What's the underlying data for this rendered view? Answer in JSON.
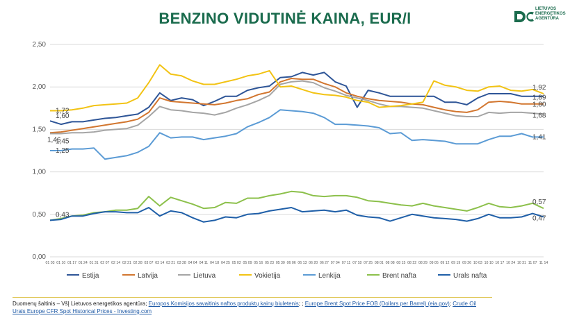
{
  "title": "BENZINO VIDUTINĖ KAINA, EUR/l",
  "logo": {
    "text_lines": [
      "LIETUVOS",
      "ENERGETIKOS",
      "AGENTŪRA"
    ]
  },
  "source": {
    "prefix": "Duomenų šaltinis – VšĮ Lietuvos energetikos agentūra; ",
    "link1": "Europos Komisijos savaitinis naftos produktų kainų biuletenis",
    "sep1": "; ; ",
    "link2": "Europe Brent Spot Price FOB (Dollars per Barrel) (eia.gov)",
    "sep2": "; ",
    "link3": "Crude Oil Urals Europe CFR Spot Historical Prices - Investing.com"
  },
  "chart_data": {
    "type": "line",
    "title": "BENZINO VIDUTINĖ KAINA, EUR/l",
    "xlabel": "",
    "ylabel": "",
    "ylim": [
      0,
      2.5
    ],
    "yticks": [
      "0,00",
      "0,50",
      "1,00",
      "1,50",
      "2,00",
      "2,50"
    ],
    "grid": true,
    "legend": "bottom",
    "categories": [
      "01 03",
      "01 10",
      "01 17",
      "01 24",
      "01 31",
      "02 07",
      "02 14",
      "02 21",
      "02 28",
      "03 07",
      "03 14",
      "03 21",
      "03 28",
      "04 04",
      "04 11",
      "04 18",
      "04 25",
      "05 02",
      "05 09",
      "05 16",
      "05 23",
      "05 30",
      "06 06",
      "06 13",
      "06 20",
      "06 27",
      "07 04",
      "07 11",
      "07 18",
      "07 25",
      "08 01",
      "08 08",
      "08 15",
      "08 22",
      "08 29",
      "09 05",
      "09 12",
      "09 19",
      "09 26",
      "10 03",
      "10 10",
      "10 17",
      "10 24",
      "10 31",
      "11 07",
      "11 14"
    ],
    "series": [
      {
        "name": "Estija",
        "color": "#2e5597",
        "values": [
          1.6,
          1.56,
          1.59,
          1.59,
          1.61,
          1.63,
          1.64,
          1.66,
          1.68,
          1.76,
          1.93,
          1.84,
          1.87,
          1.85,
          1.78,
          1.83,
          1.89,
          1.89,
          1.96,
          1.99,
          2.01,
          2.11,
          2.12,
          2.17,
          2.14,
          2.17,
          2.06,
          2.01,
          1.76,
          1.96,
          1.93,
          1.89,
          1.89,
          1.89,
          1.89,
          1.89,
          1.82,
          1.82,
          1.79,
          1.87,
          1.92,
          1.92,
          1.92,
          1.89,
          1.89,
          1.89
        ]
      },
      {
        "name": "Latvija",
        "color": "#d2762f",
        "values": [
          1.46,
          1.47,
          1.49,
          1.51,
          1.53,
          1.55,
          1.57,
          1.59,
          1.62,
          1.7,
          1.87,
          1.83,
          1.82,
          1.81,
          1.8,
          1.79,
          1.81,
          1.84,
          1.86,
          1.91,
          1.94,
          2.06,
          2.1,
          2.09,
          2.09,
          2.04,
          2.0,
          1.93,
          1.89,
          1.86,
          1.84,
          1.83,
          1.82,
          1.8,
          1.79,
          1.76,
          1.73,
          1.71,
          1.7,
          1.73,
          1.82,
          1.83,
          1.82,
          1.8,
          1.8,
          1.8
        ]
      },
      {
        "name": "Lietuva",
        "color": "#a5a5a5",
        "values": [
          1.45,
          1.45,
          1.46,
          1.46,
          1.47,
          1.49,
          1.5,
          1.51,
          1.55,
          1.65,
          1.77,
          1.73,
          1.72,
          1.7,
          1.69,
          1.67,
          1.7,
          1.75,
          1.79,
          1.84,
          1.9,
          2.03,
          2.06,
          2.07,
          2.05,
          1.99,
          1.95,
          1.9,
          1.87,
          1.84,
          1.8,
          1.77,
          1.77,
          1.76,
          1.75,
          1.72,
          1.69,
          1.66,
          1.65,
          1.65,
          1.7,
          1.69,
          1.7,
          1.7,
          1.69,
          1.68
        ]
      },
      {
        "name": "Vokietija",
        "color": "#f2c314",
        "values": [
          1.72,
          1.72,
          1.73,
          1.75,
          1.78,
          1.79,
          1.8,
          1.81,
          1.87,
          2.05,
          2.26,
          2.15,
          2.13,
          2.07,
          2.03,
          2.03,
          2.06,
          2.09,
          2.13,
          2.15,
          2.19,
          2.0,
          2.01,
          1.97,
          1.93,
          1.91,
          1.9,
          1.88,
          1.84,
          1.82,
          1.76,
          1.77,
          1.78,
          1.8,
          1.82,
          2.07,
          2.02,
          2.0,
          1.96,
          1.95,
          2.0,
          2.01,
          1.96,
          1.95,
          1.97,
          1.92
        ]
      },
      {
        "name": "Lenkija",
        "color": "#5b9bd5",
        "values": [
          1.25,
          1.25,
          1.27,
          1.27,
          1.28,
          1.15,
          1.17,
          1.19,
          1.23,
          1.3,
          1.46,
          1.4,
          1.41,
          1.41,
          1.38,
          1.4,
          1.42,
          1.45,
          1.53,
          1.58,
          1.64,
          1.73,
          1.72,
          1.71,
          1.69,
          1.64,
          1.56,
          1.56,
          1.55,
          1.54,
          1.52,
          1.45,
          1.46,
          1.37,
          1.38,
          1.37,
          1.36,
          1.33,
          1.33,
          1.33,
          1.38,
          1.42,
          1.42,
          1.45,
          1.41,
          1.41
        ]
      },
      {
        "name": "Brent nafta",
        "color": "#8cc04b",
        "values": [
          0.43,
          0.45,
          0.48,
          0.49,
          0.52,
          0.53,
          0.55,
          0.55,
          0.57,
          0.71,
          0.6,
          0.7,
          0.66,
          0.62,
          0.57,
          0.58,
          0.64,
          0.63,
          0.69,
          0.69,
          0.72,
          0.74,
          0.77,
          0.76,
          0.72,
          0.71,
          0.72,
          0.72,
          0.7,
          0.66,
          0.65,
          0.63,
          0.61,
          0.6,
          0.63,
          0.6,
          0.58,
          0.56,
          0.54,
          0.58,
          0.63,
          0.59,
          0.58,
          0.6,
          0.63,
          0.57
        ]
      },
      {
        "name": "Urals nafta",
        "color": "#1f5fa8",
        "values": [
          0.43,
          0.44,
          0.48,
          0.48,
          0.51,
          0.53,
          0.53,
          0.52,
          0.52,
          0.58,
          0.48,
          0.54,
          0.52,
          0.46,
          0.41,
          0.43,
          0.47,
          0.46,
          0.5,
          0.51,
          0.54,
          0.56,
          0.58,
          0.53,
          0.54,
          0.55,
          0.53,
          0.55,
          0.49,
          0.47,
          0.46,
          0.42,
          0.46,
          0.5,
          0.48,
          0.46,
          0.45,
          0.44,
          0.42,
          0.45,
          0.5,
          0.46,
          0.46,
          0.47,
          0.51,
          0.47
        ]
      }
    ],
    "start_labels": [
      {
        "series": 0,
        "text": "1,60"
      },
      {
        "series": 1,
        "text": "1,46"
      },
      {
        "series": 2,
        "text": "1,45"
      },
      {
        "series": 3,
        "text": "1,72"
      },
      {
        "series": 4,
        "text": "1,25"
      },
      {
        "series": 6,
        "text": "0,43"
      }
    ],
    "end_labels": [
      {
        "series": 3,
        "text": "1,92"
      },
      {
        "series": 0,
        "text": "1,89"
      },
      {
        "series": 1,
        "text": "1,80"
      },
      {
        "series": 2,
        "text": "1,68"
      },
      {
        "series": 4,
        "text": "1,41"
      },
      {
        "series": 5,
        "text": "0,57"
      },
      {
        "series": 6,
        "text": "0,47"
      }
    ]
  }
}
